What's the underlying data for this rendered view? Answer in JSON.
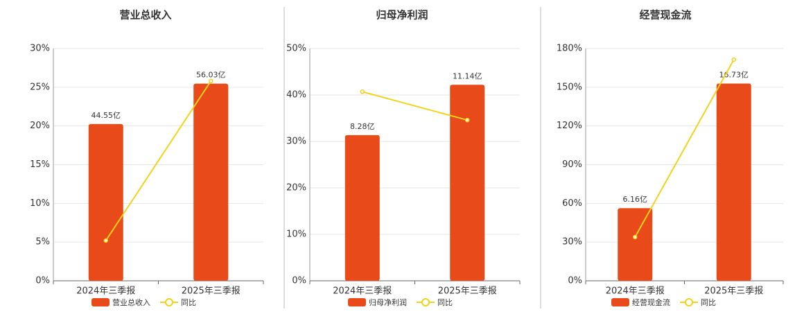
{
  "chart_data": [
    {
      "type": "bar",
      "title": "营业总收入",
      "categories": [
        "2024年三季报",
        "2025年三季报"
      ],
      "series": [
        {
          "name": "营业总收入",
          "type": "bar",
          "color": "#e84a1a",
          "axis": "y2",
          "values": [
            44.55,
            56.03
          ],
          "value_labels": [
            "44.55亿",
            "56.03亿"
          ]
        },
        {
          "name": "同比",
          "type": "line",
          "color": "#f2d21b",
          "values": [
            5.2,
            25.8
          ]
        }
      ],
      "ylim": [
        0,
        30
      ],
      "yticks": [
        {
          "value": 0,
          "label": "0%"
        },
        {
          "value": 5,
          "label": "5%"
        },
        {
          "value": 10,
          "label": "10%"
        },
        {
          "value": 15,
          "label": "15%"
        },
        {
          "value": 20,
          "label": "20%"
        },
        {
          "value": 25,
          "label": "25%"
        },
        {
          "value": 30,
          "label": "30%"
        }
      ],
      "y2lim": [
        0,
        66
      ],
      "grid": true
    },
    {
      "type": "bar",
      "title": "归母净利润",
      "categories": [
        "2024年三季报",
        "2025年三季报"
      ],
      "series": [
        {
          "name": "归母净利润",
          "type": "bar",
          "color": "#e84a1a",
          "axis": "y2",
          "values": [
            8.28,
            11.14
          ],
          "value_labels": [
            "8.28亿",
            "11.14亿"
          ]
        },
        {
          "name": "同比",
          "type": "line",
          "color": "#f2d21b",
          "values": [
            40.7,
            34.6
          ]
        }
      ],
      "ylim": [
        0,
        50
      ],
      "yticks": [
        {
          "value": 0,
          "label": "0%"
        },
        {
          "value": 10,
          "label": "10%"
        },
        {
          "value": 20,
          "label": "20%"
        },
        {
          "value": 30,
          "label": "30%"
        },
        {
          "value": 40,
          "label": "40%"
        },
        {
          "value": 50,
          "label": "50%"
        }
      ],
      "y2lim": [
        0,
        13.2
      ],
      "grid": true
    },
    {
      "type": "bar",
      "title": "经营现金流",
      "categories": [
        "2024年三季报",
        "2025年三季报"
      ],
      "series": [
        {
          "name": "经营现金流",
          "type": "bar",
          "color": "#e84a1a",
          "axis": "y2",
          "values": [
            6.16,
            16.73
          ],
          "value_labels": [
            "6.16亿",
            "16.73亿"
          ]
        },
        {
          "name": "同比",
          "type": "line",
          "color": "#f2d21b",
          "values": [
            33.9,
            171.4
          ]
        }
      ],
      "ylim": [
        0,
        180
      ],
      "yticks": [
        {
          "value": 0,
          "label": "0%"
        },
        {
          "value": 30,
          "label": "30%"
        },
        {
          "value": 60,
          "label": "60%"
        },
        {
          "value": 90,
          "label": "90%"
        },
        {
          "value": 120,
          "label": "120%"
        },
        {
          "value": 150,
          "label": "150%"
        },
        {
          "value": 180,
          "label": "180%"
        }
      ],
      "y2lim": [
        0,
        19.7
      ],
      "grid": true
    }
  ]
}
